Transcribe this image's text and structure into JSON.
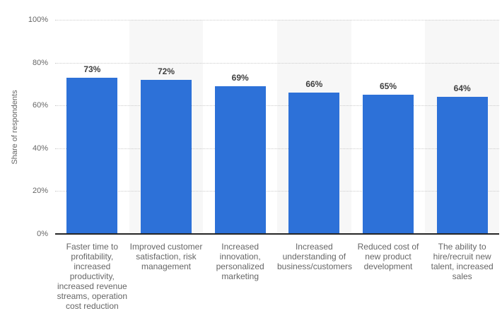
{
  "chart_data": {
    "type": "bar",
    "title": "",
    "ylabel": "Share of respondents",
    "xlabel": "",
    "categories": [
      "Faster time to profitability, increased productivity, increased revenue streams, operation cost reduction",
      "Improved customer satisfaction, risk management",
      "Increased innovation, personalized marketing",
      "Increased understanding of business/customers",
      "Reduced cost of new product development",
      "The ability to hire/recruit new talent, increased sales"
    ],
    "values": [
      73,
      72,
      69,
      66,
      65,
      64
    ],
    "value_labels": [
      "73%",
      "72%",
      "69%",
      "66%",
      "65%",
      "64%"
    ],
    "ylim": [
      0,
      100
    ],
    "ytick_values": [
      0,
      20,
      40,
      60,
      80,
      100
    ],
    "ytick_labels": [
      "0%",
      "20%",
      "40%",
      "60%",
      "80%",
      "100%"
    ],
    "grid": "horizontal-dotted",
    "legend": "none",
    "plot_bands_on_category_indexes": [
      1,
      3,
      5
    ],
    "colors": {
      "bar": "#2d71d8",
      "plot_band": "#f7f7f7",
      "gridline": "#cccccc",
      "axis_line": "#262626",
      "tick_text": "#666666",
      "category_text": "#666666",
      "value_text": "#404040",
      "background": "#ffffff"
    }
  }
}
